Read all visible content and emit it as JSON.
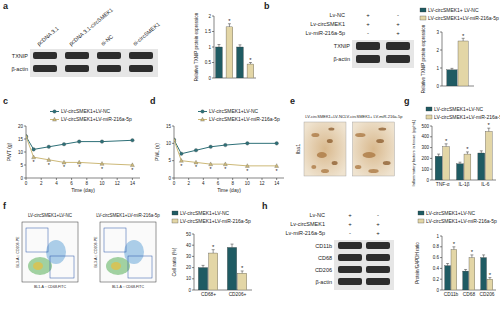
{
  "chart_data": [
    {
      "type": "bar",
      "y_label": "Relative TXNIP protein expression",
      "categories": [
        null,
        null,
        null,
        null
      ],
      "series": [
        {
          "colors": [
            "#1f5b63",
            "#e3d6a6",
            "#1f5b63",
            "#e3d6a6"
          ],
          "values": [
            1.0,
            1.65,
            1.0,
            0.45
          ],
          "errors": [
            0.08,
            0.1,
            0.07,
            0.05
          ],
          "significance": [
            null,
            "*",
            null,
            "*"
          ]
        }
      ],
      "ylim": [
        0,
        2
      ],
      "yticks": [
        0,
        0.5,
        1,
        1.5,
        2
      ]
    },
    {
      "type": "bar",
      "y_label": "Relative TXNIP protein expression",
      "categories": [
        null
      ],
      "legend": "top",
      "series": [
        {
          "name": "LV-circSMEK1+ LV-NC",
          "color": "#1f5b63",
          "values": [
            0.9
          ],
          "errors": [
            0.08
          ],
          "significance": [
            null
          ]
        },
        {
          "name": "LV-circSMEK1+LV-miR-216a-5p",
          "color": "#e3d6a6",
          "values": [
            2.5
          ],
          "errors": [
            0.15
          ],
          "significance": [
            "*"
          ]
        }
      ],
      "ylim": [
        0,
        3
      ],
      "yticks": [
        0,
        1,
        2,
        3
      ]
    },
    {
      "panel": "c",
      "type": "line",
      "x_label": "Time (day)",
      "y_label": "PWT (g)",
      "x": [
        0,
        1,
        3,
        5,
        7,
        10,
        14
      ],
      "legend": "top",
      "series": [
        {
          "name": "LV-circSMEK1+LV-NC",
          "color": "#2e7078",
          "marker": "circle",
          "values": [
            16,
            11,
            12,
            13,
            14,
            14,
            14.5
          ]
        },
        {
          "name": "LV-circSMEK1+LV-miR-216a-5p",
          "color": "#cdb978",
          "marker": "triangle",
          "values": [
            16,
            8,
            7,
            6,
            6,
            5.5,
            5
          ],
          "significance": [
            null,
            "*",
            "*",
            "*",
            "*",
            "*",
            "*"
          ]
        }
      ],
      "xlim": [
        0,
        15
      ],
      "xticks": [
        0,
        2,
        4,
        6,
        8,
        10,
        12,
        14
      ],
      "ylim": [
        0,
        20
      ],
      "yticks": [
        0,
        5,
        10,
        15,
        20
      ]
    },
    {
      "panel": "d",
      "type": "line",
      "x_label": "Time (day)",
      "y_label": "PWL (s)",
      "x": [
        0,
        1,
        3,
        5,
        7,
        10,
        14
      ],
      "legend": "top",
      "series": [
        {
          "name": "LV-circSMEK1+LV-NC",
          "color": "#2e7078",
          "marker": "circle",
          "values": [
            11,
            7,
            8,
            9,
            9.5,
            10,
            10
          ]
        },
        {
          "name": "LV-circSMEK1+LV-miR-216a-5p",
          "color": "#cdb978",
          "marker": "triangle",
          "values": [
            11,
            5,
            4.5,
            4,
            4,
            3.5,
            3.5
          ],
          "significance": [
            null,
            "*",
            "*",
            "*",
            "*",
            "*",
            "*"
          ]
        }
      ],
      "xlim": [
        0,
        15
      ],
      "xticks": [
        0,
        2,
        4,
        6,
        8,
        10,
        12,
        14
      ],
      "ylim": [
        0,
        15
      ],
      "yticks": [
        0,
        5,
        10,
        15
      ]
    },
    {
      "panel": "g",
      "type": "bar",
      "y_label": "Inflammatory factors in tissue (pg/mL)",
      "categories": [
        "TNF-α",
        "IL-1β",
        "IL-6"
      ],
      "legend": "top",
      "series": [
        {
          "name": "LV-circSMEK1+LV-NC",
          "color": "#1f5b63",
          "values": [
            220,
            150,
            250
          ],
          "errors": [
            20,
            15,
            20
          ],
          "significance": [
            null,
            null,
            null
          ]
        },
        {
          "name": "LV-circSMEK1+LV-miR-216a-5p",
          "color": "#e3d6a6",
          "values": [
            310,
            240,
            450
          ],
          "errors": [
            25,
            20,
            30
          ],
          "significance": [
            "*",
            "*",
            "*"
          ]
        }
      ],
      "ylim": [
        0,
        500
      ],
      "yticks": [
        0,
        100,
        200,
        300,
        400,
        500
      ]
    },
    {
      "type": "bar",
      "y_label": "Cell ratio (%)",
      "categories": [
        "CD68+",
        "CD206+"
      ],
      "legend": "top",
      "series": [
        {
          "name": "LV-circSMEK1+LV-NC",
          "color": "#1f5b63",
          "values": [
            20,
            38
          ],
          "errors": [
            2,
            3
          ],
          "significance": [
            null,
            null
          ]
        },
        {
          "name": "LV-circSMEK1+LV-miR-216a-5p",
          "color": "#e3d6a6",
          "values": [
            33,
            15
          ],
          "errors": [
            3,
            2
          ],
          "significance": [
            "*",
            "*"
          ]
        }
      ],
      "ylim": [
        0,
        50
      ],
      "yticks": [
        0,
        10,
        20,
        30,
        40,
        50
      ]
    },
    {
      "type": "bar",
      "y_label": "Protein/GAPDH ratio",
      "categories": [
        "CD11b",
        "CD68",
        "CD206"
      ],
      "legend": "top",
      "series": [
        {
          "name": "LV-circSMEK1+LV-NC",
          "color": "#1f5b63",
          "values": [
            0.45,
            0.35,
            0.6
          ],
          "errors": [
            0.04,
            0.03,
            0.05
          ],
          "significance": [
            null,
            null,
            null
          ]
        },
        {
          "name": "LV-circSMEK1+LV-miR-216a-5p",
          "color": "#e3d6a6",
          "values": [
            0.75,
            0.6,
            0.2
          ],
          "errors": [
            0.05,
            0.05,
            0.03
          ],
          "significance": [
            "*",
            "*",
            "*"
          ]
        }
      ],
      "ylim": [
        0,
        1
      ],
      "yticks": [
        0,
        0.2,
        0.4,
        0.6,
        0.8,
        1
      ]
    }
  ],
  "blots": [
    {
      "panel": "a",
      "lanes": [
        "pcDNA 3.1",
        "pcDNA 3.1-circSMEK1",
        "si-NC",
        "si-circSMEK1"
      ],
      "bands": [
        "TXNIP",
        "β-actin"
      ]
    },
    {
      "panel": "b",
      "conditions": [
        {
          "name": "Lv-NC",
          "signs": [
            "+",
            "-"
          ]
        },
        {
          "name": "Lv-circSMEK1",
          "signs": [
            "+",
            "+"
          ]
        },
        {
          "name": "Lv-miR-216a-5p",
          "signs": [
            "-",
            "+"
          ]
        }
      ],
      "bands": [
        "TXNIP",
        "β-actin"
      ]
    },
    {
      "panel": "h",
      "conditions": [
        {
          "name": "Lv-NC",
          "signs": [
            "+",
            "-"
          ]
        },
        {
          "name": "Lv-circSMEK1",
          "signs": [
            "+",
            "+"
          ]
        },
        {
          "name": "Lv-miR-216a-5p",
          "signs": [
            "-",
            "+"
          ]
        }
      ],
      "bands": [
        "CD11b",
        "CD68",
        "CD206",
        "β-actin"
      ]
    }
  ],
  "ihc": {
    "panel": "e",
    "row_label": "Iba1",
    "columns": [
      "LV-circSMEK1+LV-NC",
      "LV-circSMEK1+ LV-miR-216a-5p"
    ]
  },
  "flow": {
    "panel": "f",
    "plots": [
      {
        "title": "LV-circSMEK1+LV-NC",
        "x_label": "BL1-A :: CD68-FITC",
        "y_label": "BL3-A :: CD206-PE"
      },
      {
        "title": "LV-circSMEK1+LV-miR-216a-5p",
        "x_label": "BL1-A :: CD68-FITC",
        "y_label": "BL3-A :: CD206-PE"
      }
    ]
  }
}
